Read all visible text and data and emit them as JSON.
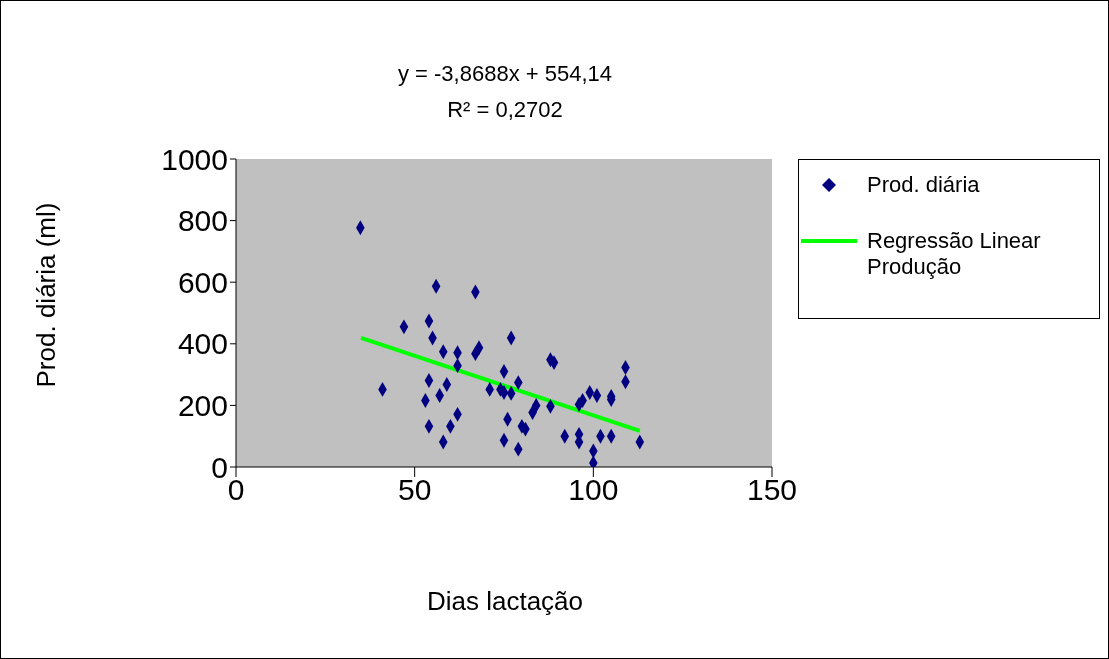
{
  "chart_data": {
    "type": "scatter",
    "title": "y = -3,8688x + 554,14",
    "subtitle": "R² = 0,2702",
    "xlabel": "Dias lactação",
    "ylabel": "Prod. diária (ml)",
    "xlim": [
      0,
      150
    ],
    "xticks": [
      0,
      50,
      100,
      150
    ],
    "ylim": [
      0,
      1000
    ],
    "yticks": [
      0,
      200,
      400,
      600,
      800,
      1000
    ],
    "grid": false,
    "legend": "right",
    "series": [
      {
        "name": "Prod. diária",
        "color": "#000080",
        "marker": "diamond",
        "x": [
          34.8,
          41,
          47,
          54,
          55,
          54,
          53,
          54,
          56,
          57,
          58,
          58,
          59,
          60,
          62,
          62,
          62,
          67,
          67,
          68,
          71,
          74,
          75,
          75,
          75,
          77,
          77,
          76,
          79,
          79,
          80,
          81,
          83,
          84,
          88,
          88,
          89,
          92,
          96,
          96,
          96,
          97,
          99,
          101,
          100,
          100,
          102,
          105,
          105,
          105,
          109,
          109,
          113
        ],
        "values": [
          777,
          252,
          455,
          474,
          419,
          281,
          216,
          132,
          587,
          232,
          374,
          81,
          268,
          132,
          371,
          329,
          171,
          568,
          368,
          387,
          252,
          252,
          310,
          242,
          87,
          239,
          419,
          155,
          274,
          58,
          132,
          123,
          177,
          200,
          197,
          348,
          339,
          100,
          106,
          81,
          203,
          216,
          242,
          232,
          52,
          13,
          100,
          219,
          229,
          100,
          323,
          277,
          81
        ]
      },
      {
        "name": "Regressão Linear Produção",
        "color": "#00ff00",
        "type": "line",
        "marker": "none",
        "x": [
          35,
          113
        ],
        "values": [
          419,
          117
        ]
      }
    ]
  }
}
